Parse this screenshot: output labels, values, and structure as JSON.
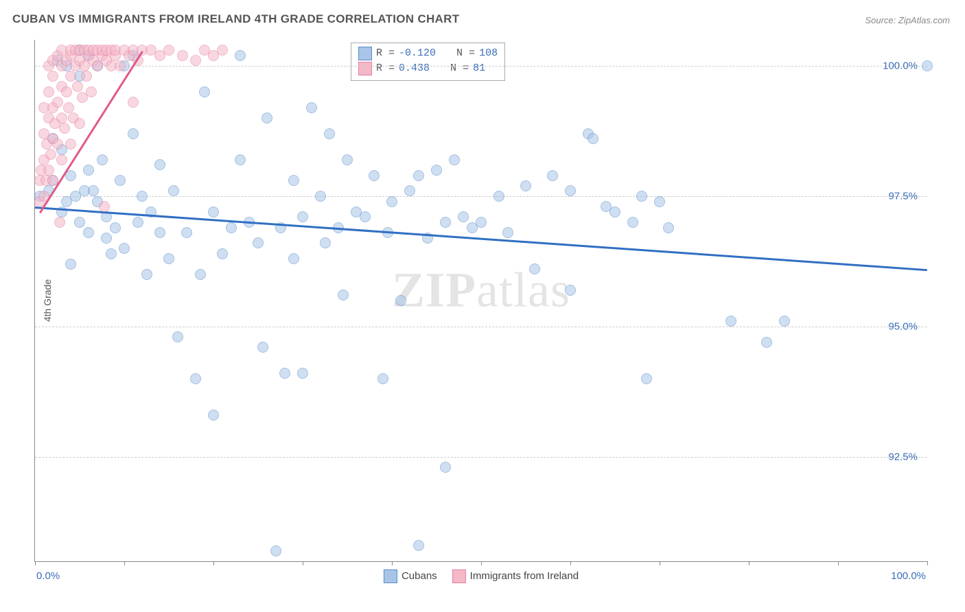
{
  "title": "CUBAN VS IMMIGRANTS FROM IRELAND 4TH GRADE CORRELATION CHART",
  "source": "Source: ZipAtlas.com",
  "watermark_bold": "ZIP",
  "watermark_rest": "atlas",
  "chart": {
    "type": "scatter",
    "ylabel": "4th Grade",
    "xlim": [
      0,
      100
    ],
    "ylim": [
      90.5,
      100.5
    ],
    "background_color": "#ffffff",
    "grid_color": "#cccccc",
    "axis_color": "#888888",
    "label_color": "#3b6db8",
    "marker_size": 14,
    "xtick_positions": [
      0,
      10,
      20,
      30,
      40,
      50,
      60,
      70,
      80,
      90,
      100
    ],
    "xtick_labels": {
      "0": "0.0%",
      "100": "100.0%"
    },
    "ytick_positions": [
      92.5,
      95.0,
      97.5,
      100.0
    ],
    "ytick_labels": [
      "92.5%",
      "95.0%",
      "97.5%",
      "100.0%"
    ],
    "series": [
      {
        "name": "Cubans",
        "fill_color": "#a8c5e8",
        "stroke_color": "#5a8bc9",
        "trend_color": "#2f6fc2",
        "trend": {
          "x0": 0,
          "y0": 97.3,
          "x1": 100,
          "y1": 96.1
        },
        "points": [
          [
            0.5,
            97.5
          ],
          [
            1.5,
            97.6
          ],
          [
            2,
            97.8
          ],
          [
            2,
            98.6
          ],
          [
            2.5,
            100.1
          ],
          [
            3,
            97.2
          ],
          [
            3,
            98.4
          ],
          [
            3.5,
            97.4
          ],
          [
            3.5,
            100.0
          ],
          [
            4,
            97.9
          ],
          [
            4,
            96.2
          ],
          [
            4.5,
            97.5
          ],
          [
            5,
            100.3
          ],
          [
            5,
            99.8
          ],
          [
            5,
            97.0
          ],
          [
            5.5,
            97.6
          ],
          [
            6,
            100.2
          ],
          [
            6,
            98.0
          ],
          [
            6,
            96.8
          ],
          [
            6.5,
            97.6
          ],
          [
            7,
            100.0
          ],
          [
            7,
            97.4
          ],
          [
            7.5,
            98.2
          ],
          [
            8,
            97.1
          ],
          [
            8,
            96.7
          ],
          [
            8.5,
            96.4
          ],
          [
            9,
            96.9
          ],
          [
            9.5,
            97.8
          ],
          [
            10,
            100.0
          ],
          [
            10,
            96.5
          ],
          [
            11,
            100.2
          ],
          [
            11,
            98.7
          ],
          [
            11.5,
            97.0
          ],
          [
            12,
            97.5
          ],
          [
            12.5,
            96.0
          ],
          [
            13,
            97.2
          ],
          [
            14,
            98.1
          ],
          [
            14,
            96.8
          ],
          [
            15,
            96.3
          ],
          [
            15.5,
            97.6
          ],
          [
            16,
            94.8
          ],
          [
            17,
            96.8
          ],
          [
            18,
            94.0
          ],
          [
            18.5,
            96.0
          ],
          [
            19,
            99.5
          ],
          [
            20,
            97.2
          ],
          [
            20,
            93.3
          ],
          [
            21,
            96.4
          ],
          [
            22,
            96.9
          ],
          [
            23,
            100.2
          ],
          [
            23,
            98.2
          ],
          [
            24,
            97.0
          ],
          [
            25,
            96.6
          ],
          [
            25.5,
            94.6
          ],
          [
            26,
            99.0
          ],
          [
            27,
            90.7
          ],
          [
            27.5,
            96.9
          ],
          [
            28,
            94.1
          ],
          [
            29,
            97.8
          ],
          [
            29,
            96.3
          ],
          [
            30,
            97.1
          ],
          [
            30,
            94.1
          ],
          [
            31,
            99.2
          ],
          [
            32,
            97.5
          ],
          [
            32.5,
            96.6
          ],
          [
            33,
            98.7
          ],
          [
            34,
            96.9
          ],
          [
            34.5,
            95.6
          ],
          [
            35,
            98.2
          ],
          [
            36,
            97.2
          ],
          [
            37,
            97.1
          ],
          [
            38,
            97.9
          ],
          [
            39,
            94.0
          ],
          [
            39.5,
            96.8
          ],
          [
            40,
            97.4
          ],
          [
            41,
            95.5
          ],
          [
            42,
            97.6
          ],
          [
            43,
            90.8
          ],
          [
            43,
            97.9
          ],
          [
            44,
            96.7
          ],
          [
            45,
            98.0
          ],
          [
            46,
            97.0
          ],
          [
            46,
            92.3
          ],
          [
            47,
            98.2
          ],
          [
            48,
            97.1
          ],
          [
            49,
            96.9
          ],
          [
            50,
            97.0
          ],
          [
            52,
            97.5
          ],
          [
            53,
            96.8
          ],
          [
            55,
            97.7
          ],
          [
            56,
            96.1
          ],
          [
            58,
            97.9
          ],
          [
            60,
            97.6
          ],
          [
            60,
            95.7
          ],
          [
            62,
            98.7
          ],
          [
            62.5,
            98.6
          ],
          [
            64,
            97.3
          ],
          [
            65,
            97.2
          ],
          [
            67,
            97.0
          ],
          [
            68,
            97.5
          ],
          [
            68.5,
            94.0
          ],
          [
            70,
            97.4
          ],
          [
            71,
            96.9
          ],
          [
            78,
            95.1
          ],
          [
            82,
            94.7
          ],
          [
            84,
            95.1
          ],
          [
            100,
            100.0
          ]
        ]
      },
      {
        "name": "Immigrants from Ireland",
        "fill_color": "#f4b8c7",
        "stroke_color": "#e87ea0",
        "trend_color": "#e05a88",
        "trend": {
          "x0": 0.5,
          "y0": 97.2,
          "x1": 12,
          "y1": 100.3
        },
        "points": [
          [
            0.5,
            97.4
          ],
          [
            0.5,
            97.8
          ],
          [
            0.7,
            98.0
          ],
          [
            1,
            97.5
          ],
          [
            1,
            98.2
          ],
          [
            1,
            98.7
          ],
          [
            1,
            99.2
          ],
          [
            1.2,
            97.8
          ],
          [
            1.3,
            98.5
          ],
          [
            1.5,
            98.0
          ],
          [
            1.5,
            99.0
          ],
          [
            1.5,
            99.5
          ],
          [
            1.5,
            100.0
          ],
          [
            1.8,
            98.3
          ],
          [
            2,
            97.8
          ],
          [
            2,
            98.6
          ],
          [
            2,
            99.2
          ],
          [
            2,
            99.8
          ],
          [
            2,
            100.1
          ],
          [
            2.2,
            98.9
          ],
          [
            2.5,
            98.5
          ],
          [
            2.5,
            99.3
          ],
          [
            2.5,
            100.2
          ],
          [
            2.8,
            97.0
          ],
          [
            3,
            98.2
          ],
          [
            3,
            99.0
          ],
          [
            3,
            99.6
          ],
          [
            3,
            100.0
          ],
          [
            3,
            100.3
          ],
          [
            3.3,
            98.8
          ],
          [
            3.5,
            99.5
          ],
          [
            3.5,
            100.1
          ],
          [
            3.8,
            99.2
          ],
          [
            4,
            98.5
          ],
          [
            4,
            99.8
          ],
          [
            4,
            100.2
          ],
          [
            4,
            100.3
          ],
          [
            4.3,
            99.0
          ],
          [
            4.5,
            100.0
          ],
          [
            4.5,
            100.3
          ],
          [
            4.8,
            99.6
          ],
          [
            5,
            98.9
          ],
          [
            5,
            100.1
          ],
          [
            5,
            100.3
          ],
          [
            5.3,
            99.4
          ],
          [
            5.5,
            100.0
          ],
          [
            5.5,
            100.3
          ],
          [
            5.8,
            99.8
          ],
          [
            6,
            100.2
          ],
          [
            6,
            100.3
          ],
          [
            6.3,
            99.5
          ],
          [
            6.5,
            100.1
          ],
          [
            6.5,
            100.3
          ],
          [
            7,
            100.0
          ],
          [
            7,
            100.3
          ],
          [
            7.5,
            100.2
          ],
          [
            7.5,
            100.3
          ],
          [
            7.8,
            97.3
          ],
          [
            8,
            100.1
          ],
          [
            8,
            100.3
          ],
          [
            8.5,
            100.0
          ],
          [
            8.5,
            100.3
          ],
          [
            9,
            100.2
          ],
          [
            9,
            100.3
          ],
          [
            9.5,
            100.0
          ],
          [
            10,
            100.3
          ],
          [
            10.5,
            100.2
          ],
          [
            11,
            99.3
          ],
          [
            11,
            100.3
          ],
          [
            11.5,
            100.1
          ],
          [
            12,
            100.3
          ],
          [
            13,
            100.3
          ],
          [
            14,
            100.2
          ],
          [
            15,
            100.3
          ],
          [
            16.5,
            100.2
          ],
          [
            18,
            100.1
          ],
          [
            19,
            100.3
          ],
          [
            20,
            100.2
          ],
          [
            21,
            100.3
          ]
        ]
      }
    ],
    "stats_box": [
      {
        "swatch_fill": "#a8c5e8",
        "swatch_stroke": "#5a8bc9",
        "r_label": "R =",
        "r_val": "-0.120",
        "n_label": "N =",
        "n_val": "108"
      },
      {
        "swatch_fill": "#f4b8c7",
        "swatch_stroke": "#e87ea0",
        "r_label": "R =",
        "r_val": " 0.438",
        "n_label": "N =",
        "n_val": " 81"
      }
    ]
  }
}
